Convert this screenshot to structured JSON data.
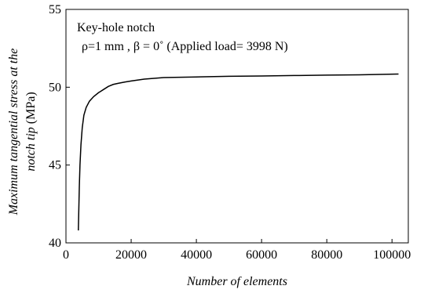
{
  "chart_data": {
    "type": "line",
    "xlabel": "Number of elements",
    "ylabel_line1": "Maximum tangential stress at the",
    "ylabel_line2_italic": "notch tip",
    "ylabel_line2_unit": " (MPa)",
    "xlim": [
      0,
      105000
    ],
    "ylim": [
      40,
      55
    ],
    "xticks": [
      "0",
      "20000",
      "40000",
      "60000",
      "80000",
      "100000"
    ],
    "yticks": [
      "40",
      "45",
      "50",
      "55"
    ],
    "annotation_line1": "Key-hole notch",
    "annotation_line2": "ρ=1 mm , β = 0˚ (Applied load= 3998 N)",
    "grid": false,
    "series": [
      {
        "x": [
          3800,
          3950,
          4100,
          4300,
          4600,
          5000,
          5500,
          6200,
          7200,
          8500,
          10000,
          11500,
          13000,
          14500,
          16000,
          18000,
          20000,
          24000,
          30000,
          40000,
          50000,
          60000,
          70000,
          80000,
          90000,
          102000
        ],
        "y": [
          40.8,
          42.2,
          43.6,
          45.0,
          46.3,
          47.4,
          48.2,
          48.7,
          49.1,
          49.4,
          49.65,
          49.85,
          50.05,
          50.18,
          50.25,
          50.33,
          50.4,
          50.52,
          50.62,
          50.66,
          50.7,
          50.72,
          50.75,
          50.78,
          50.8,
          50.85
        ]
      }
    ]
  }
}
